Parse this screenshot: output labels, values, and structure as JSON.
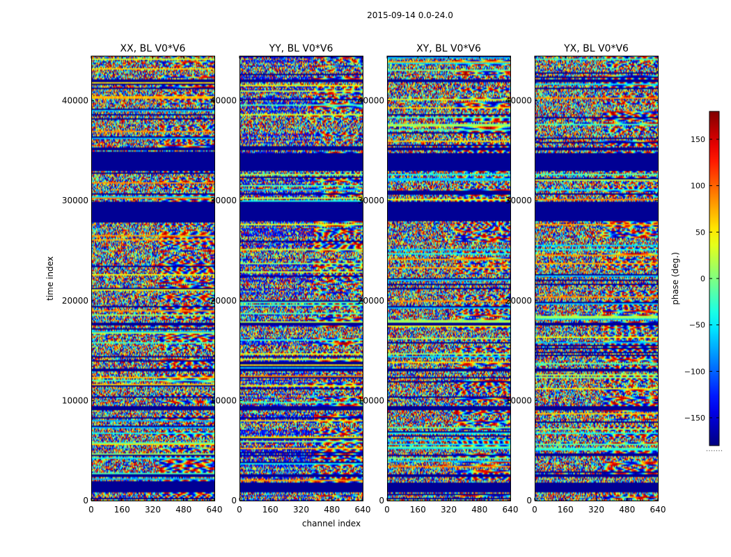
{
  "chart_data": {
    "type": "heatmap",
    "suptitle": "2015-09-14 0.0-24.0",
    "xlabel": "channel index",
    "ylabel": "time index",
    "xlim": [
      0,
      640
    ],
    "ylim": [
      0,
      44500
    ],
    "xticks": [
      "0",
      "160",
      "320",
      "480",
      "640"
    ],
    "xtick_values": [
      0,
      160,
      320,
      480,
      640
    ],
    "yticks": [
      "0",
      "10000",
      "20000",
      "30000",
      "40000"
    ],
    "ytick_values": [
      0,
      10000,
      20000,
      30000,
      40000
    ],
    "panels": [
      {
        "title": "XX, BL V0*V6",
        "pol": "XX"
      },
      {
        "title": "YY, BL V0*V6",
        "pol": "YY"
      },
      {
        "title": "XY, BL V0*V6",
        "pol": "XY"
      },
      {
        "title": "YX, BL V0*V6",
        "pol": "YX"
      }
    ],
    "flagged_time_ranges": [
      [
        27900,
        29900
      ],
      [
        33000,
        34800
      ],
      [
        900,
        1800
      ],
      [
        2300,
        2700
      ],
      [
        4400,
        4600
      ],
      [
        9100,
        9400
      ],
      [
        12900,
        13200
      ],
      [
        17500,
        17800
      ],
      [
        30600,
        30800
      ],
      [
        35100,
        35300
      ],
      [
        41800,
        42100
      ]
    ],
    "colorbar": {
      "label": "phase (deg.)",
      "range": [
        -180,
        180
      ],
      "ticks": [
        "150",
        "100",
        "50",
        "0",
        "−50",
        "−100",
        "−150"
      ],
      "tick_values": [
        150,
        100,
        50,
        0,
        -50,
        -100,
        -150
      ],
      "colormap": "jet",
      "bottom_annotation": "......."
    }
  }
}
